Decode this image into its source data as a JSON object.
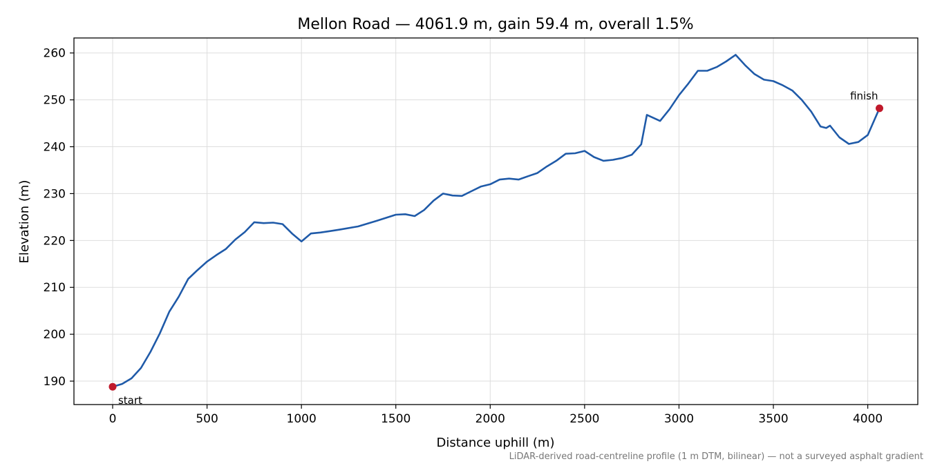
{
  "chart_data": {
    "type": "line",
    "title": "Mellon Road — 4061.9 m, gain 59.4 m, overall 1.5%",
    "xlabel": "Distance uphill (m)",
    "ylabel": "Elevation (m)",
    "xlim": [
      -205,
      4265
    ],
    "ylim": [
      185,
      263.2
    ],
    "xticks": [
      0,
      500,
      1000,
      1500,
      2000,
      2500,
      3000,
      3500,
      4000
    ],
    "yticks": [
      190,
      200,
      210,
      220,
      230,
      240,
      250,
      260
    ],
    "grid": true,
    "line_color": "#1f5aa8",
    "marker_color": "#c0192b",
    "series": [
      {
        "x": [
          0,
          50,
          100,
          150,
          200,
          250,
          300,
          350,
          400,
          450,
          500,
          550,
          600,
          650,
          700,
          750,
          800,
          850,
          900,
          950,
          1000,
          1050,
          1100,
          1150,
          1200,
          1300,
          1400,
          1500,
          1550,
          1600,
          1650,
          1700,
          1750,
          1800,
          1850,
          1900,
          1950,
          2000,
          2050,
          2100,
          2150,
          2200,
          2250,
          2300,
          2350,
          2400,
          2450,
          2500,
          2550,
          2600,
          2650,
          2700,
          2750,
          2800,
          2830,
          2900,
          2950,
          3000,
          3050,
          3100,
          3150,
          3200,
          3250,
          3300,
          3350,
          3400,
          3450,
          3500,
          3550,
          3600,
          3650,
          3700,
          3750,
          3780,
          3800,
          3850,
          3900,
          3950,
          4000,
          4061.9
        ],
        "y": [
          188.8,
          189.4,
          190.6,
          192.8,
          196.2,
          200.2,
          204.8,
          208.0,
          211.8,
          213.7,
          215.5,
          216.9,
          218.2,
          220.2,
          221.8,
          223.9,
          223.7,
          223.8,
          223.5,
          221.5,
          219.8,
          221.5,
          221.7,
          222.0,
          222.3,
          223.0,
          224.2,
          225.5,
          225.6,
          225.2,
          226.5,
          228.5,
          230.0,
          229.6,
          229.5,
          230.5,
          231.5,
          232.0,
          233.0,
          233.2,
          233.0,
          233.7,
          234.4,
          235.8,
          237.0,
          238.5,
          238.6,
          239.1,
          237.8,
          237.0,
          237.2,
          237.6,
          238.3,
          240.5,
          246.8,
          245.5,
          248.0,
          251.0,
          253.5,
          256.2,
          256.2,
          257.0,
          258.2,
          259.6,
          257.4,
          255.5,
          254.3,
          254.0,
          253.1,
          252.0,
          250.0,
          247.5,
          244.3,
          244.0,
          244.5,
          242.0,
          240.6,
          241.0,
          242.5,
          248.2
        ]
      }
    ],
    "annotations": [
      {
        "text": "start",
        "x": 0,
        "y": 188.8
      },
      {
        "text": "finish",
        "x": 4061.9,
        "y": 248.2
      }
    ],
    "footnote": "LiDAR-derived road-centreline profile (1 m DTM, bilinear) — not a surveyed asphalt gradient"
  }
}
